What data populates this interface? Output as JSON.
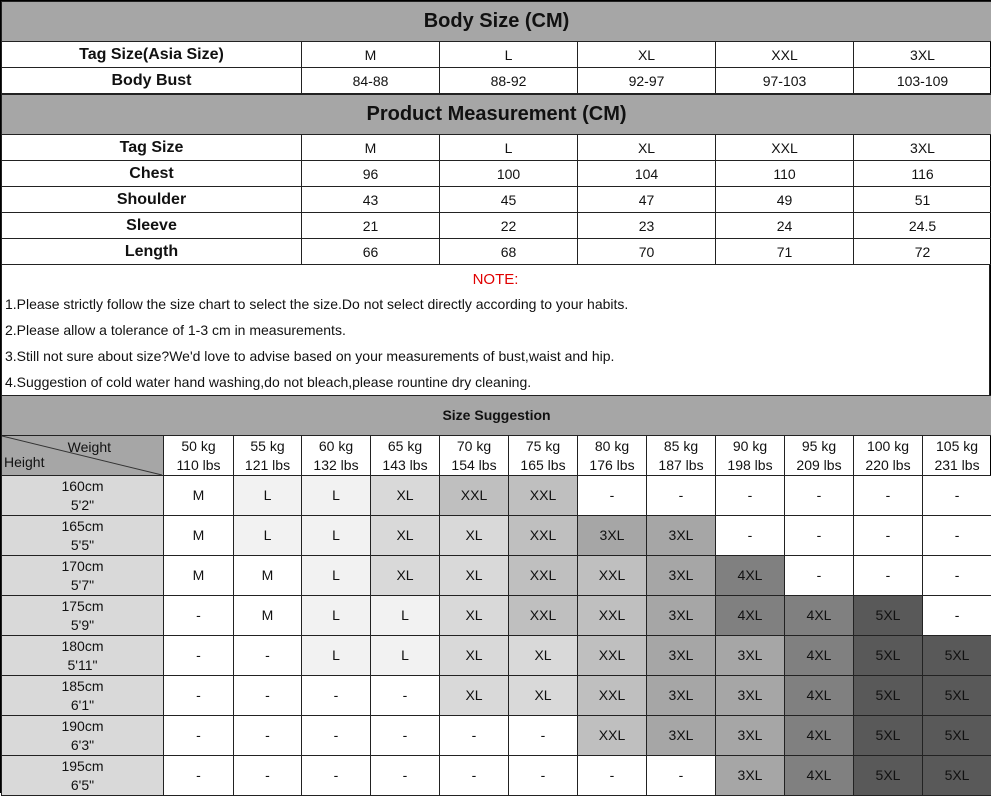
{
  "body_size": {
    "title": "Body Size (CM)",
    "rows": [
      {
        "label": "Tag Size(Asia Size)",
        "values": [
          "M",
          "L",
          "XL",
          "XXL",
          "3XL"
        ]
      },
      {
        "label": "Body Bust",
        "values": [
          "84-88",
          "88-92",
          "92-97",
          "97-103",
          "103-109"
        ]
      }
    ]
  },
  "product": {
    "title": "Product Measurement (CM)",
    "rows": [
      {
        "label": "Tag Size",
        "values": [
          "M",
          "L",
          "XL",
          "XXL",
          "3XL"
        ]
      },
      {
        "label": "Chest",
        "values": [
          "96",
          "100",
          "104",
          "110",
          "116"
        ]
      },
      {
        "label": "Shoulder",
        "values": [
          "43",
          "45",
          "47",
          "49",
          "51"
        ]
      },
      {
        "label": "Sleeve",
        "values": [
          "21",
          "22",
          "23",
          "24",
          "24.5"
        ]
      },
      {
        "label": "Length",
        "values": [
          "66",
          "68",
          "70",
          "71",
          "72"
        ]
      }
    ]
  },
  "notes": {
    "title": "NOTE:",
    "title_color": "#e00000",
    "items": [
      "1.Please strictly follow the size chart to select the size.Do not select directly according to your habits.",
      "2.Please allow a tolerance of 1-3 cm in measurements.",
      "3.Still not sure about size?We'd love to advise based on your measurements of bust,waist and hip.",
      "4.Suggestion of cold water hand washing,do not bleach,please rountine dry cleaning."
    ]
  },
  "suggestion": {
    "title": "Size Suggestion",
    "corner_weight": "Weight",
    "corner_height": "Height",
    "weights": [
      [
        "50 kg",
        "110 lbs"
      ],
      [
        "55 kg",
        "121 lbs"
      ],
      [
        "60 kg",
        "132 lbs"
      ],
      [
        "65 kg",
        "143 lbs"
      ],
      [
        "70 kg",
        "154 lbs"
      ],
      [
        "75 kg",
        "165 lbs"
      ],
      [
        "80 kg",
        "176 lbs"
      ],
      [
        "85 kg",
        "187 lbs"
      ],
      [
        "90 kg",
        "198 lbs"
      ],
      [
        "95 kg",
        "209 lbs"
      ],
      [
        "100 kg",
        "220 lbs"
      ],
      [
        "105 kg",
        "231 lbs"
      ]
    ],
    "heights": [
      [
        "160cm",
        "5'2\""
      ],
      [
        "165cm",
        "5'5\""
      ],
      [
        "170cm",
        "5'7\""
      ],
      [
        "175cm",
        "5'9\""
      ],
      [
        "180cm",
        "5'11\""
      ],
      [
        "185cm",
        "6'1\""
      ],
      [
        "190cm",
        "6'3\""
      ],
      [
        "195cm",
        "6'5\""
      ]
    ],
    "grid": [
      [
        "M",
        "L",
        "L",
        "XL",
        "XXL",
        "XXL",
        "-",
        "-",
        "-",
        "-",
        "-",
        "-"
      ],
      [
        "M",
        "L",
        "L",
        "XL",
        "XL",
        "XXL",
        "3XL",
        "3XL",
        "-",
        "-",
        "-",
        "-"
      ],
      [
        "M",
        "M",
        "L",
        "XL",
        "XL",
        "XXL",
        "XXL",
        "3XL",
        "4XL",
        "-",
        "-",
        "-"
      ],
      [
        "-",
        "M",
        "L",
        "L",
        "XL",
        "XXL",
        "XXL",
        "3XL",
        "4XL",
        "4XL",
        "5XL",
        "-"
      ],
      [
        "-",
        "-",
        "L",
        "L",
        "XL",
        "XL",
        "XXL",
        "3XL",
        "3XL",
        "4XL",
        "5XL",
        "5XL"
      ],
      [
        "-",
        "-",
        "-",
        "-",
        "XL",
        "XL",
        "XXL",
        "3XL",
        "3XL",
        "4XL",
        "5XL",
        "5XL"
      ],
      [
        "-",
        "-",
        "-",
        "-",
        "-",
        "-",
        "XXL",
        "3XL",
        "3XL",
        "4XL",
        "5XL",
        "5XL"
      ],
      [
        "-",
        "-",
        "-",
        "-",
        "-",
        "-",
        "-",
        "-",
        "3XL",
        "4XL",
        "5XL",
        "5XL"
      ]
    ],
    "size_colors": {
      "M": "#ffffff",
      "L": "#f2f2f2",
      "XL": "#d9d9d9",
      "XXL": "#bfbfbf",
      "3XL": "#a6a6a6",
      "4XL": "#808080",
      "5XL": "#595959",
      "-": "#ffffff"
    }
  }
}
